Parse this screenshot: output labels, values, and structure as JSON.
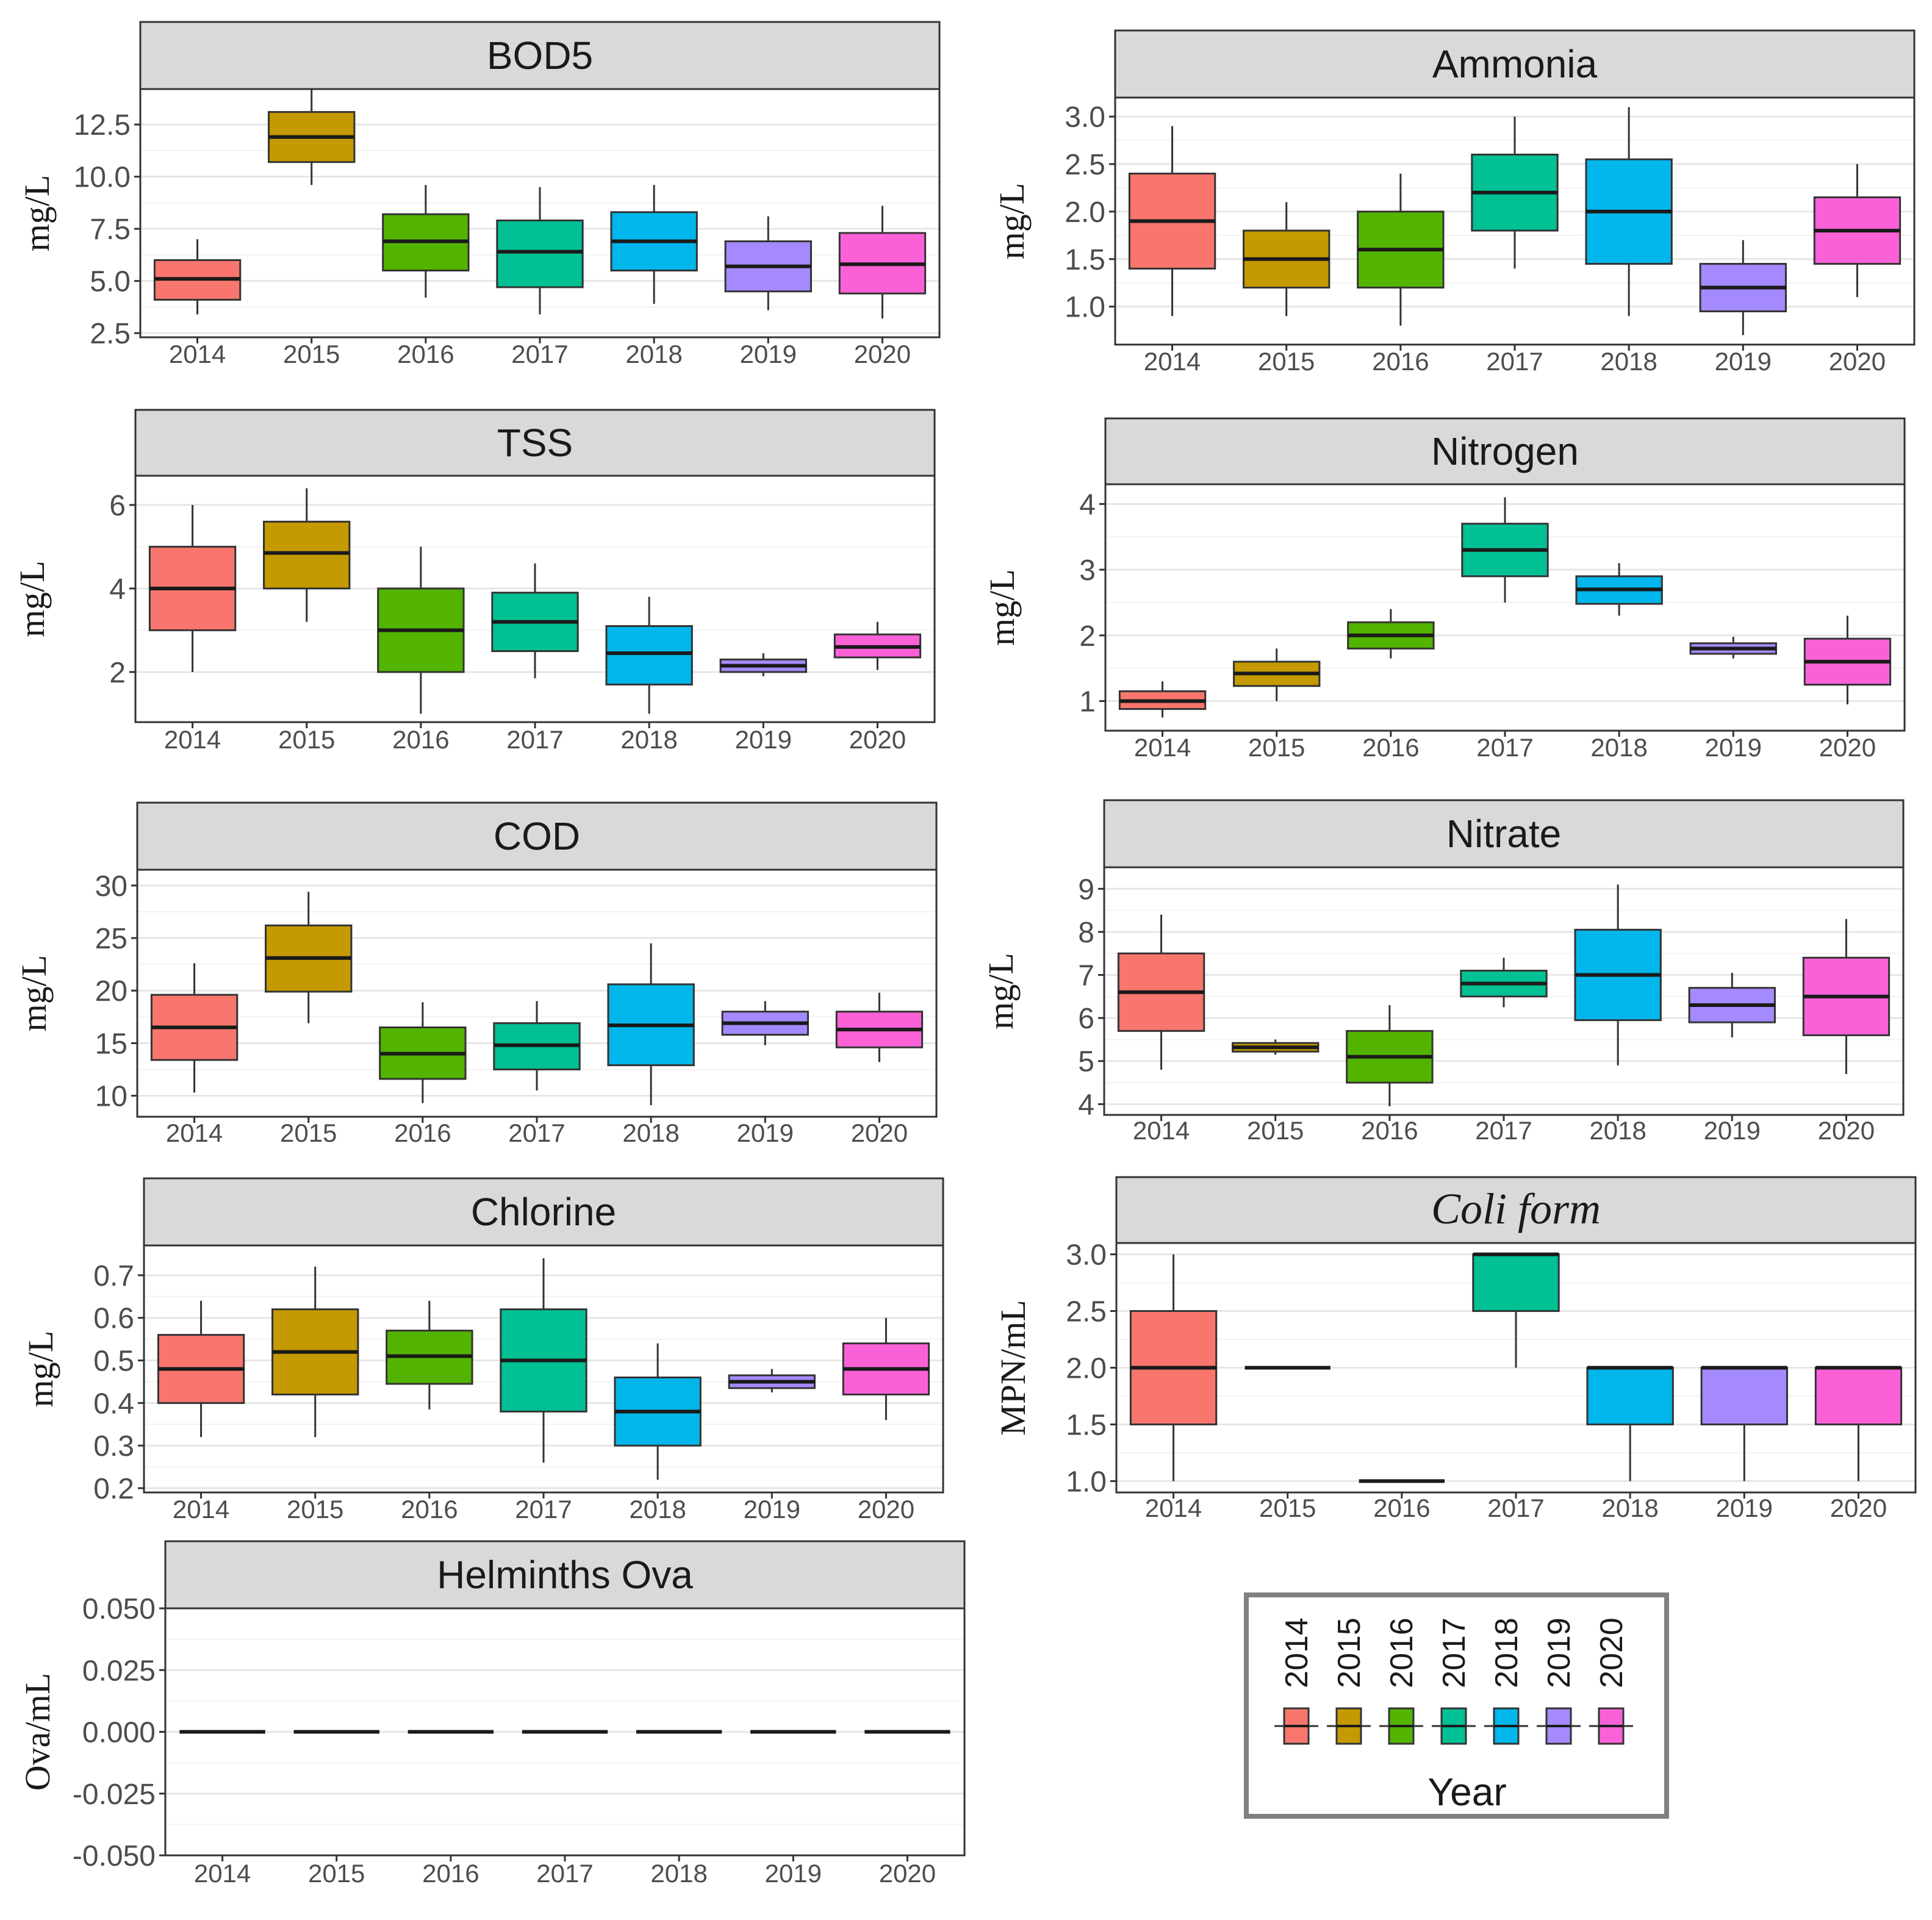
{
  "colors": {
    "2014": "#F8766D",
    "2015": "#C49A00",
    "2016": "#53B400",
    "2017": "#00C094",
    "2018": "#00B6EB",
    "2019": "#A58AFF",
    "2020": "#FB61D7"
  },
  "legend": {
    "title": "Year",
    "entries": [
      "2014",
      "2015",
      "2016",
      "2017",
      "2018",
      "2019",
      "2020"
    ]
  },
  "chart_data": [
    {
      "id": "bod5",
      "type": "boxplot",
      "title": "BOD5",
      "italic": false,
      "ylabel": "mg/L",
      "ylim": [
        2.3,
        14.2
      ],
      "yticks": [
        2.5,
        5.0,
        7.5,
        10.0,
        12.5
      ],
      "ytick_labels": [
        "2.5",
        "5.0",
        "7.5",
        "10.0",
        "12.5"
      ],
      "categories": [
        "2014",
        "2015",
        "2016",
        "2017",
        "2018",
        "2019",
        "2020"
      ],
      "boxes": [
        {
          "min": 3.4,
          "q1": 4.1,
          "median": 5.1,
          "q3": 6.0,
          "max": 7.0
        },
        {
          "min": 9.6,
          "q1": 10.7,
          "median": 11.9,
          "q3": 13.1,
          "max": 14.2
        },
        {
          "min": 4.2,
          "q1": 5.5,
          "median": 6.9,
          "q3": 8.2,
          "max": 9.6
        },
        {
          "min": 3.4,
          "q1": 4.7,
          "median": 6.4,
          "q3": 7.9,
          "max": 9.5
        },
        {
          "min": 3.9,
          "q1": 5.5,
          "median": 6.9,
          "q3": 8.3,
          "max": 9.6
        },
        {
          "min": 3.6,
          "q1": 4.5,
          "median": 5.7,
          "q3": 6.9,
          "max": 8.1
        },
        {
          "min": 3.2,
          "q1": 4.4,
          "median": 5.8,
          "q3": 7.3,
          "max": 8.6
        }
      ]
    },
    {
      "id": "ammonia",
      "type": "boxplot",
      "title": "Ammonia",
      "italic": false,
      "ylabel": "mg/L",
      "ylim": [
        0.6,
        3.2
      ],
      "yticks": [
        1.0,
        1.5,
        2.0,
        2.5,
        3.0
      ],
      "ytick_labels": [
        "1.0",
        "1.5",
        "2.0",
        "2.5",
        "3.0"
      ],
      "categories": [
        "2014",
        "2015",
        "2016",
        "2017",
        "2018",
        "2019",
        "2020"
      ],
      "boxes": [
        {
          "min": 0.9,
          "q1": 1.4,
          "median": 1.9,
          "q3": 2.4,
          "max": 2.9
        },
        {
          "min": 0.9,
          "q1": 1.2,
          "median": 1.5,
          "q3": 1.8,
          "max": 2.1
        },
        {
          "min": 0.8,
          "q1": 1.2,
          "median": 1.6,
          "q3": 2.0,
          "max": 2.4
        },
        {
          "min": 1.4,
          "q1": 1.8,
          "median": 2.2,
          "q3": 2.6,
          "max": 3.0
        },
        {
          "min": 0.9,
          "q1": 1.45,
          "median": 2.0,
          "q3": 2.55,
          "max": 3.1
        },
        {
          "min": 0.7,
          "q1": 0.95,
          "median": 1.2,
          "q3": 1.45,
          "max": 1.7
        },
        {
          "min": 1.1,
          "q1": 1.45,
          "median": 1.8,
          "q3": 2.15,
          "max": 2.5
        }
      ]
    },
    {
      "id": "tss",
      "type": "boxplot",
      "title": "TSS",
      "italic": false,
      "ylabel": "mg/L",
      "ylim": [
        0.8,
        6.7
      ],
      "yticks": [
        2,
        4,
        6
      ],
      "ytick_labels": [
        "2",
        "4",
        "6"
      ],
      "categories": [
        "2014",
        "2015",
        "2016",
        "2017",
        "2018",
        "2019",
        "2020"
      ],
      "boxes": [
        {
          "min": 2.0,
          "q1": 3.0,
          "median": 4.0,
          "q3": 5.0,
          "max": 6.0
        },
        {
          "min": 3.2,
          "q1": 4.0,
          "median": 4.85,
          "q3": 5.6,
          "max": 6.4
        },
        {
          "min": 1.0,
          "q1": 2.0,
          "median": 3.0,
          "q3": 4.0,
          "max": 5.0
        },
        {
          "min": 1.85,
          "q1": 2.5,
          "median": 3.2,
          "q3": 3.9,
          "max": 4.6
        },
        {
          "min": 1.0,
          "q1": 1.7,
          "median": 2.45,
          "q3": 3.1,
          "max": 3.8
        },
        {
          "min": 1.9,
          "q1": 2.0,
          "median": 2.15,
          "q3": 2.3,
          "max": 2.45
        },
        {
          "min": 2.05,
          "q1": 2.35,
          "median": 2.6,
          "q3": 2.9,
          "max": 3.2
        }
      ]
    },
    {
      "id": "nitrogen",
      "type": "boxplot",
      "title": "Nitrogen",
      "italic": false,
      "ylabel": "mg/L",
      "ylim": [
        0.55,
        4.3
      ],
      "yticks": [
        1,
        2,
        3,
        4
      ],
      "ytick_labels": [
        "1",
        "2",
        "3",
        "4"
      ],
      "categories": [
        "2014",
        "2015",
        "2016",
        "2017",
        "2018",
        "2019",
        "2020"
      ],
      "boxes": [
        {
          "min": 0.75,
          "q1": 0.88,
          "median": 1.0,
          "q3": 1.15,
          "max": 1.3
        },
        {
          "min": 1.0,
          "q1": 1.23,
          "median": 1.42,
          "q3": 1.6,
          "max": 1.8
        },
        {
          "min": 1.65,
          "q1": 1.8,
          "median": 2.0,
          "q3": 2.2,
          "max": 2.4
        },
        {
          "min": 2.5,
          "q1": 2.9,
          "median": 3.3,
          "q3": 3.7,
          "max": 4.1
        },
        {
          "min": 2.3,
          "q1": 2.48,
          "median": 2.7,
          "q3": 2.9,
          "max": 3.1
        },
        {
          "min": 1.65,
          "q1": 1.72,
          "median": 1.8,
          "q3": 1.88,
          "max": 1.98
        },
        {
          "min": 0.95,
          "q1": 1.25,
          "median": 1.6,
          "q3": 1.95,
          "max": 2.3
        }
      ]
    },
    {
      "id": "cod",
      "type": "boxplot",
      "title": "COD",
      "italic": false,
      "ylabel": "mg/L",
      "ylim": [
        8.0,
        31.5
      ],
      "yticks": [
        10,
        15,
        20,
        25,
        30
      ],
      "ytick_labels": [
        "10",
        "15",
        "20",
        "25",
        "30"
      ],
      "categories": [
        "2014",
        "2015",
        "2016",
        "2017",
        "2018",
        "2019",
        "2020"
      ],
      "boxes": [
        {
          "min": 10.3,
          "q1": 13.4,
          "median": 16.5,
          "q3": 19.6,
          "max": 22.6
        },
        {
          "min": 16.9,
          "q1": 19.9,
          "median": 23.1,
          "q3": 26.2,
          "max": 29.4
        },
        {
          "min": 9.3,
          "q1": 11.6,
          "median": 14.0,
          "q3": 16.5,
          "max": 18.9
        },
        {
          "min": 10.5,
          "q1": 12.5,
          "median": 14.8,
          "q3": 16.9,
          "max": 19.0
        },
        {
          "min": 9.1,
          "q1": 12.9,
          "median": 16.7,
          "q3": 20.6,
          "max": 24.5
        },
        {
          "min": 14.8,
          "q1": 15.8,
          "median": 16.9,
          "q3": 18.0,
          "max": 19.0
        },
        {
          "min": 13.2,
          "q1": 14.6,
          "median": 16.3,
          "q3": 18.0,
          "max": 19.8
        }
      ]
    },
    {
      "id": "nitrate",
      "type": "boxplot",
      "title": "Nitrate",
      "italic": false,
      "ylabel": "mg/L",
      "ylim": [
        3.75,
        9.5
      ],
      "yticks": [
        4,
        5,
        6,
        7,
        8,
        9
      ],
      "ytick_labels": [
        "4",
        "5",
        "6",
        "7",
        "8",
        "9"
      ],
      "categories": [
        "2014",
        "2015",
        "2016",
        "2017",
        "2018",
        "2019",
        "2020"
      ],
      "boxes": [
        {
          "min": 4.8,
          "q1": 5.7,
          "median": 6.6,
          "q3": 7.5,
          "max": 8.4
        },
        {
          "min": 5.15,
          "q1": 5.22,
          "median": 5.32,
          "q3": 5.42,
          "max": 5.5
        },
        {
          "min": 3.95,
          "q1": 4.5,
          "median": 5.1,
          "q3": 5.7,
          "max": 6.3
        },
        {
          "min": 6.25,
          "q1": 6.5,
          "median": 6.8,
          "q3": 7.1,
          "max": 7.4
        },
        {
          "min": 4.9,
          "q1": 5.95,
          "median": 7.0,
          "q3": 8.05,
          "max": 9.1
        },
        {
          "min": 5.55,
          "q1": 5.9,
          "median": 6.3,
          "q3": 6.7,
          "max": 7.05
        },
        {
          "min": 4.7,
          "q1": 5.6,
          "median": 6.5,
          "q3": 7.4,
          "max": 8.3
        }
      ]
    },
    {
      "id": "chlorine",
      "type": "boxplot",
      "title": "Chlorine",
      "italic": false,
      "ylabel": "mg/L",
      "ylim": [
        0.19,
        0.77
      ],
      "yticks": [
        0.2,
        0.3,
        0.4,
        0.5,
        0.6,
        0.7
      ],
      "ytick_labels": [
        "0.2",
        "0.3",
        "0.4",
        "0.5",
        "0.6",
        "0.7"
      ],
      "categories": [
        "2014",
        "2015",
        "2016",
        "2017",
        "2018",
        "2019",
        "2020"
      ],
      "boxes": [
        {
          "min": 0.32,
          "q1": 0.4,
          "median": 0.48,
          "q3": 0.56,
          "max": 0.64
        },
        {
          "min": 0.32,
          "q1": 0.42,
          "median": 0.52,
          "q3": 0.62,
          "max": 0.72
        },
        {
          "min": 0.385,
          "q1": 0.445,
          "median": 0.51,
          "q3": 0.57,
          "max": 0.64
        },
        {
          "min": 0.26,
          "q1": 0.38,
          "median": 0.5,
          "q3": 0.62,
          "max": 0.74
        },
        {
          "min": 0.22,
          "q1": 0.3,
          "median": 0.38,
          "q3": 0.46,
          "max": 0.54
        },
        {
          "min": 0.425,
          "q1": 0.435,
          "median": 0.45,
          "q3": 0.465,
          "max": 0.48
        },
        {
          "min": 0.36,
          "q1": 0.42,
          "median": 0.48,
          "q3": 0.54,
          "max": 0.6
        }
      ]
    },
    {
      "id": "coliform",
      "type": "boxplot",
      "title": "Coli form",
      "italic": true,
      "ylabel": "MPN/mL",
      "ylim": [
        0.9,
        3.1
      ],
      "yticks": [
        1.0,
        1.5,
        2.0,
        2.5,
        3.0
      ],
      "ytick_labels": [
        "1.0",
        "1.5",
        "2.0",
        "2.5",
        "3.0"
      ],
      "categories": [
        "2014",
        "2015",
        "2016",
        "2017",
        "2018",
        "2019",
        "2020"
      ],
      "boxes": [
        {
          "min": 1.0,
          "q1": 1.5,
          "median": 2.0,
          "q3": 2.5,
          "max": 3.0
        },
        {
          "min": 2.0,
          "q1": 2.0,
          "median": 2.0,
          "q3": 2.0,
          "max": 2.0
        },
        {
          "min": 1.0,
          "q1": 1.0,
          "median": 1.0,
          "q3": 1.0,
          "max": 1.0
        },
        {
          "min": 2.0,
          "q1": 2.5,
          "median": 3.0,
          "q3": 3.0,
          "max": 3.0
        },
        {
          "min": 1.0,
          "q1": 1.5,
          "median": 2.0,
          "q3": 2.0,
          "max": 2.0
        },
        {
          "min": 1.0,
          "q1": 1.5,
          "median": 2.0,
          "q3": 2.0,
          "max": 2.0
        },
        {
          "min": 1.0,
          "q1": 1.5,
          "median": 2.0,
          "q3": 2.0,
          "max": 2.0
        }
      ]
    },
    {
      "id": "helminths",
      "type": "boxplot",
      "title": "Helminths Ova",
      "italic": false,
      "ylabel": "Ova/mL",
      "ylim": [
        -0.05,
        0.05
      ],
      "yticks": [
        -0.05,
        -0.025,
        0.0,
        0.025,
        0.05
      ],
      "ytick_labels": [
        "-0.050",
        "-0.025",
        "0.000",
        "0.025",
        "0.050"
      ],
      "categories": [
        "2014",
        "2015",
        "2016",
        "2017",
        "2018",
        "2019",
        "2020"
      ],
      "boxes": [
        {
          "min": 0,
          "q1": 0,
          "median": 0,
          "q3": 0,
          "max": 0
        },
        {
          "min": 0,
          "q1": 0,
          "median": 0,
          "q3": 0,
          "max": 0
        },
        {
          "min": 0,
          "q1": 0,
          "median": 0,
          "q3": 0,
          "max": 0
        },
        {
          "min": 0,
          "q1": 0,
          "median": 0,
          "q3": 0,
          "max": 0
        },
        {
          "min": 0,
          "q1": 0,
          "median": 0,
          "q3": 0,
          "max": 0
        },
        {
          "min": 0,
          "q1": 0,
          "median": 0,
          "q3": 0,
          "max": 0
        },
        {
          "min": 0,
          "q1": 0,
          "median": 0,
          "q3": 0,
          "max": 0
        }
      ]
    }
  ]
}
